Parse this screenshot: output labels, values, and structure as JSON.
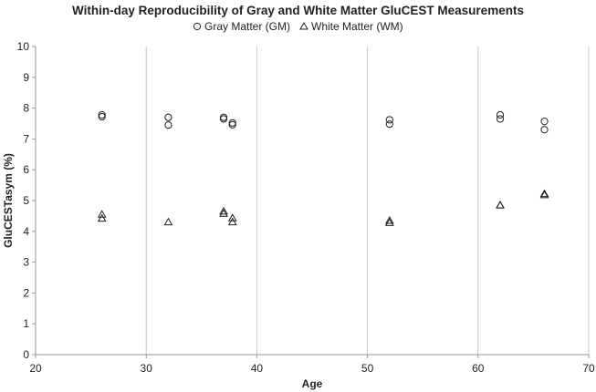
{
  "chart_data": {
    "type": "scatter",
    "title": "Within-day Reproducibility of Gray and White Matter GluCEST Measurements",
    "xlabel": "Age",
    "ylabel": "GluCESTasym (%)",
    "xlim": [
      20,
      70
    ],
    "ylim": [
      0,
      10
    ],
    "xticks": [
      20,
      30,
      40,
      50,
      60,
      70
    ],
    "yticks": [
      0,
      1,
      2,
      3,
      4,
      5,
      6,
      7,
      8,
      9,
      10
    ],
    "grid": "vertical-major",
    "legend_position": "top-center",
    "series": [
      {
        "name": "Gray Matter (GM)",
        "marker": "circle",
        "color": "#222222",
        "points": [
          [
            26,
            7.78
          ],
          [
            26,
            7.72
          ],
          [
            32,
            7.7
          ],
          [
            32,
            7.45
          ],
          [
            37,
            7.7
          ],
          [
            37,
            7.65
          ],
          [
            37.8,
            7.52
          ],
          [
            37.8,
            7.46
          ],
          [
            52,
            7.62
          ],
          [
            52,
            7.48
          ],
          [
            62,
            7.78
          ],
          [
            62,
            7.65
          ],
          [
            66,
            7.57
          ],
          [
            66,
            7.3
          ]
        ]
      },
      {
        "name": "White Matter (WM)",
        "marker": "triangle",
        "color": "#222222",
        "points": [
          [
            26,
            4.55
          ],
          [
            26,
            4.42
          ],
          [
            32,
            4.3
          ],
          [
            37,
            4.65
          ],
          [
            37,
            4.58
          ],
          [
            37.8,
            4.43
          ],
          [
            37.8,
            4.3
          ],
          [
            52,
            4.35
          ],
          [
            52,
            4.28
          ],
          [
            62,
            4.85
          ],
          [
            62,
            4.85
          ],
          [
            66,
            5.22
          ],
          [
            66,
            5.18
          ]
        ]
      }
    ]
  }
}
